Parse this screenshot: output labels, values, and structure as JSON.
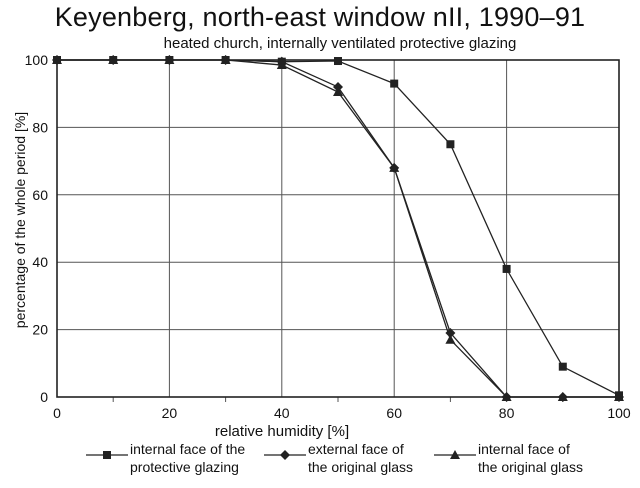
{
  "chart_data": {
    "type": "line",
    "title": "Keyenberg, north-east window nII, 1990–91",
    "subtitle": "heated church, internally ventilated protective glazing",
    "xlabel": "relative humidity [%]",
    "ylabel": "percentage of the whole period [%]",
    "xlim": [
      0,
      100
    ],
    "ylim": [
      0,
      100
    ],
    "xticks": [
      "0",
      "20",
      "40",
      "60",
      "80",
      "100"
    ],
    "yticks": [
      "0",
      "20",
      "40",
      "60",
      "80",
      "100"
    ],
    "grid": true,
    "legend_position": "bottom",
    "series": [
      {
        "name": "internal face of the protective glazing",
        "legend_lines": [
          "internal face of the",
          "protective glazing"
        ],
        "marker": "square",
        "x": [
          0,
          10,
          20,
          30,
          40,
          50,
          60,
          70,
          80,
          90,
          100
        ],
        "y": [
          100,
          100,
          100,
          100,
          99.5,
          99.7,
          93,
          75,
          38,
          9,
          0.5
        ]
      },
      {
        "name": "external face of the original glass",
        "legend_lines": [
          "external face of",
          "the original glass"
        ],
        "marker": "diamond",
        "x": [
          0,
          10,
          20,
          30,
          40,
          50,
          60,
          70,
          80,
          90,
          100
        ],
        "y": [
          100,
          100,
          100,
          100,
          99.5,
          92,
          68,
          19,
          0,
          0,
          0
        ]
      },
      {
        "name": "internal face of the original glass",
        "legend_lines": [
          "internal face of",
          "the original glass"
        ],
        "marker": "triangle",
        "x": [
          0,
          10,
          20,
          30,
          40,
          50,
          60,
          70,
          80,
          90,
          100
        ],
        "y": [
          100,
          100,
          100,
          100,
          98.5,
          90.5,
          68,
          17,
          0,
          0,
          0
        ]
      }
    ],
    "colors": {
      "line": "#222222",
      "grid": "#555555",
      "background": "#ffffff"
    }
  }
}
